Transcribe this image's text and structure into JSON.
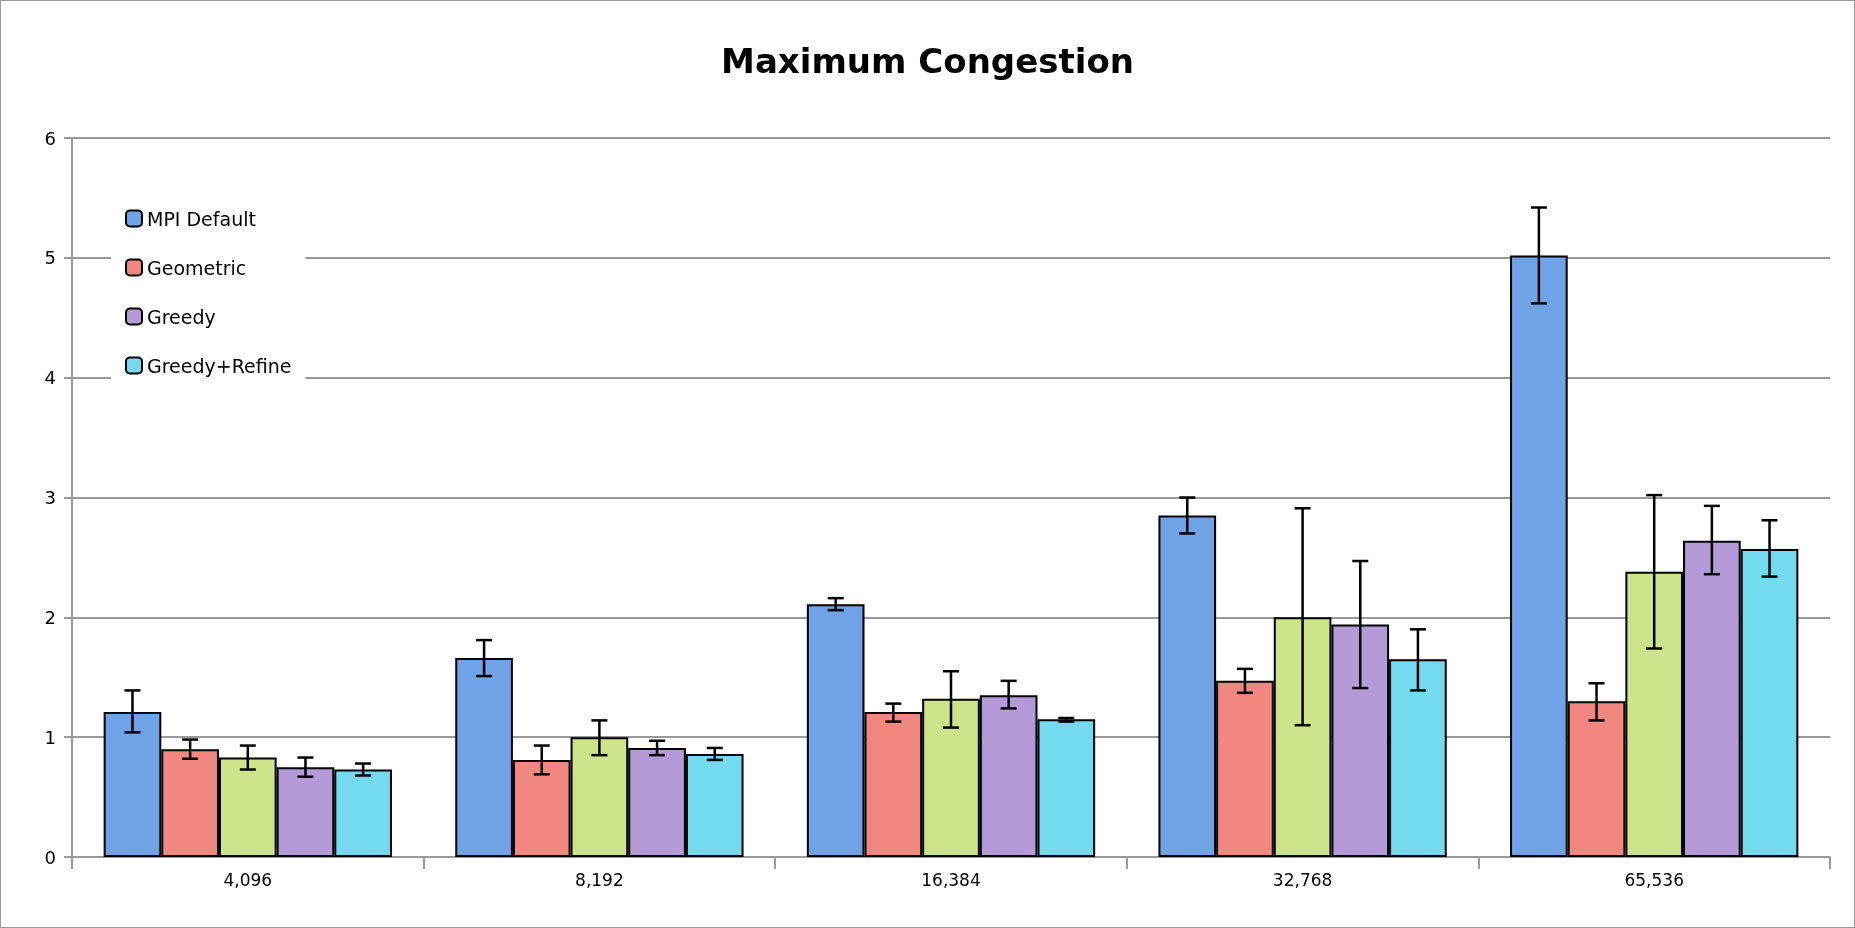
{
  "chart_data": {
    "type": "bar",
    "title": "Maximum Congestion",
    "categories": [
      "4,096",
      "8,192",
      "16,384",
      "32,768",
      "65,536"
    ],
    "series": [
      {
        "name": "MPI Default",
        "color": "#6fa3e6",
        "values": [
          1.21,
          1.66,
          2.11,
          2.85,
          5.02
        ],
        "errors": [
          [
            1.04,
            1.39
          ],
          [
            1.51,
            1.81
          ],
          [
            2.06,
            2.16
          ],
          [
            2.7,
            3.0
          ],
          [
            4.62,
            5.42
          ]
        ]
      },
      {
        "name": "Geometric",
        "color": "#f08880",
        "values": [
          0.9,
          0.81,
          1.21,
          1.47,
          1.3
        ],
        "errors": [
          [
            0.82,
            0.98
          ],
          [
            0.69,
            0.93
          ],
          [
            1.13,
            1.28
          ],
          [
            1.37,
            1.57
          ],
          [
            1.14,
            1.45
          ]
        ]
      },
      {
        "color": "#cde48a",
        "values": [
          0.83,
          1.0,
          1.32,
          2.0,
          2.38
        ],
        "errors": [
          [
            0.73,
            0.93
          ],
          [
            0.85,
            1.14
          ],
          [
            1.08,
            1.55
          ],
          [
            1.1,
            2.91
          ],
          [
            1.74,
            3.02
          ]
        ]
      },
      {
        "name": "Greedy",
        "color": "#b49ad6",
        "values": [
          0.75,
          0.91,
          1.35,
          1.94,
          2.64
        ],
        "errors": [
          [
            0.67,
            0.83
          ],
          [
            0.85,
            0.97
          ],
          [
            1.24,
            1.47
          ],
          [
            1.41,
            2.47
          ],
          [
            2.36,
            2.93
          ]
        ]
      },
      {
        "name": "Greedy+Refine",
        "color": "#74daf0",
        "values": [
          0.73,
          0.86,
          1.15,
          1.65,
          2.57
        ],
        "errors": [
          [
            0.68,
            0.78
          ],
          [
            0.81,
            0.91
          ],
          [
            1.13,
            1.16
          ],
          [
            1.39,
            1.9
          ],
          [
            2.34,
            2.81
          ]
        ]
      }
    ],
    "ylim": [
      0,
      6
    ],
    "yticks": [
      0,
      1,
      2,
      3,
      4,
      5,
      6
    ],
    "grid": "y",
    "legend": "top left"
  }
}
